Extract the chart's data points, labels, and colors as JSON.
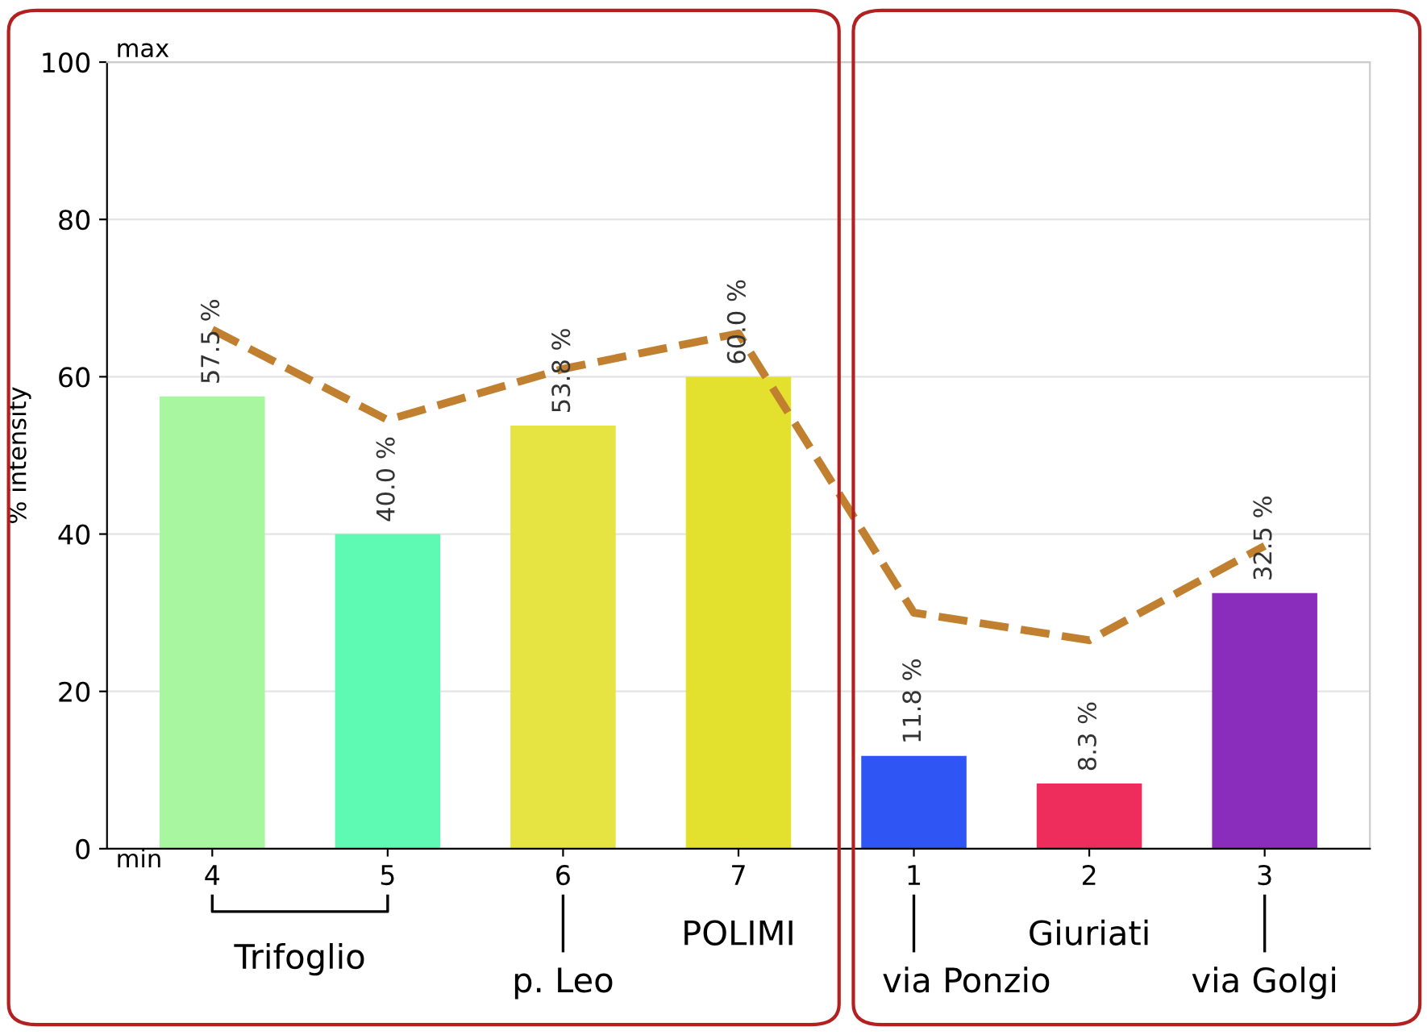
{
  "chart_data": {
    "type": "bar",
    "ylabel": "% intensity",
    "categories": [
      "4",
      "5",
      "6",
      "7",
      "1",
      "2",
      "3"
    ],
    "series": [
      {
        "values": [
          57.5,
          40.0,
          53.8,
          60.0,
          11.8,
          8.3,
          32.5
        ],
        "colors": [
          "#a8f7a0",
          "#5efab4",
          "#e6e443",
          "#e4e02e",
          "#2f55f5",
          "#ee2d5c",
          "#8a2dbc"
        ],
        "value_labels": [
          "57.5 %",
          "40.0 %",
          "53.8 %",
          "60.0 %",
          "11.8 %",
          "8.3 %",
          "32.5 %"
        ]
      },
      {
        "type": "line",
        "color": "#c08030",
        "line_style": "dashed",
        "values": [
          66,
          54.5,
          61,
          65.5,
          30,
          26.5,
          38.5
        ]
      }
    ],
    "ylim": [
      0,
      100
    ],
    "yticks": [
      0,
      20,
      40,
      60,
      80,
      100
    ],
    "grid": "y",
    "annotations": [
      "max",
      "min",
      "Trifoglio",
      "p. Leo",
      "POLIMI",
      "via Ponzio",
      "Giuriati",
      "via Golgi"
    ]
  }
}
